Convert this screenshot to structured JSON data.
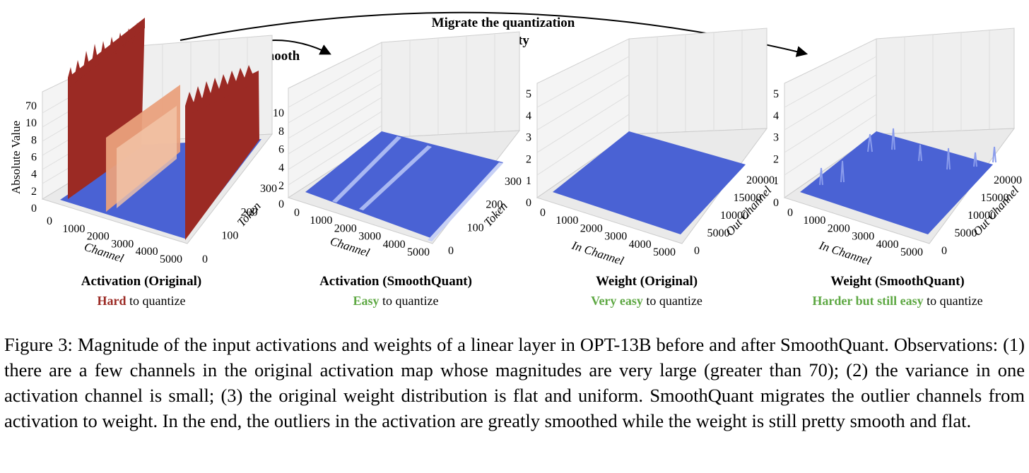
{
  "arrows": {
    "smooth_label": "Smooth",
    "migrate_label_line1": "Migrate the quantization",
    "migrate_label_line2": "difficulty"
  },
  "panels": [
    {
      "title": "Activation (Original)",
      "subtitle_emph": "Hard",
      "subtitle_rest": " to quantize",
      "emph_color": "#9b2a24",
      "z_axis_label": "Absolute Value",
      "z_ticks": [
        "0",
        "2",
        "4",
        "6",
        "8",
        "10",
        "70"
      ],
      "x_ticks": [
        "0",
        "1000",
        "2000",
        "3000",
        "4000",
        "5000"
      ],
      "x_label": "Channel",
      "y_ticks": [
        "0",
        "100",
        "200",
        "300"
      ],
      "y_label": "Token"
    },
    {
      "title": "Activation (SmoothQuant)",
      "subtitle_emph": "Easy",
      "subtitle_rest": " to quantize",
      "emph_color": "#5ea843",
      "z_ticks": [
        "0",
        "2",
        "4",
        "6",
        "8",
        "10"
      ],
      "x_ticks": [
        "0",
        "1000",
        "2000",
        "3000",
        "4000",
        "5000"
      ],
      "x_label": "Channel",
      "y_ticks": [
        "0",
        "100",
        "200",
        "300"
      ],
      "y_label": "Token"
    },
    {
      "title": "Weight (Original)",
      "subtitle_emph": "Very easy",
      "subtitle_rest": " to quantize",
      "emph_color": "#5ea843",
      "z_ticks": [
        "0",
        "1",
        "2",
        "3",
        "4",
        "5"
      ],
      "x_ticks": [
        "0",
        "1000",
        "2000",
        "3000",
        "4000",
        "5000"
      ],
      "x_label": "In Channel",
      "y_ticks": [
        "0",
        "5000",
        "10000",
        "15000",
        "20000"
      ],
      "y_label": "Out Channel"
    },
    {
      "title": "Weight (SmoothQuant)",
      "subtitle_emph": "Harder but still easy",
      "subtitle_rest": " to quantize",
      "emph_color": "#5ea843",
      "z_ticks": [
        "0",
        "1",
        "2",
        "3",
        "4",
        "5"
      ],
      "x_ticks": [
        "0",
        "1000",
        "2000",
        "3000",
        "4000",
        "5000"
      ],
      "x_label": "In Channel",
      "y_ticks": [
        "0",
        "5000",
        "10000",
        "15000",
        "20000"
      ],
      "y_label": "Out Channel"
    }
  ],
  "caption": "Figure 3:  Magnitude of the input activations and weights of a linear layer in OPT-13B before and after SmoothQuant. Observations: (1) there are a few channels in the original activation map whose magnitudes are very large (greater than 70); (2) the variance in one activation channel is small; (3) the original weight distribution is flat and uniform. SmoothQuant migrates the outlier channels from activation to weight. In the end, the outliers in the activation are greatly smoothed while the weight is still pretty smooth and flat.",
  "colors": {
    "outlier_red": "#9b2a24",
    "outlier_light": "#e9a07c",
    "surface_blue": "#4a62d4",
    "easy_green": "#5ea843"
  }
}
